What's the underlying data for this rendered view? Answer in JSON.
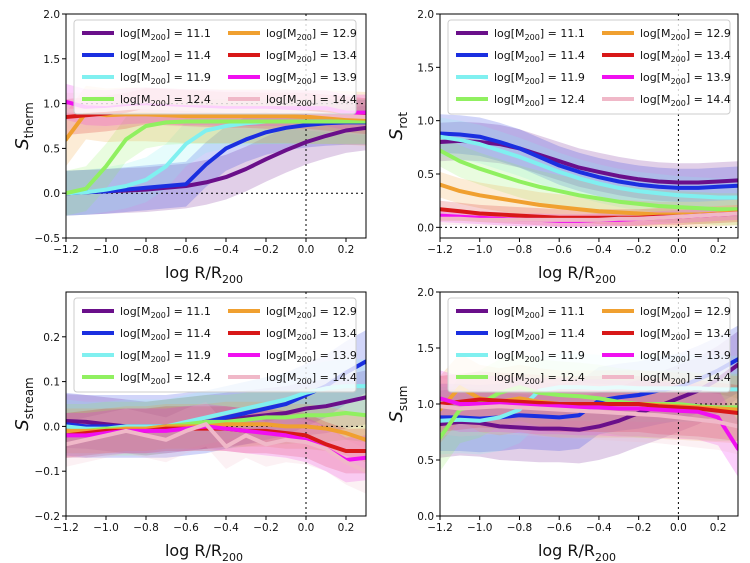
{
  "figure": {
    "xlabel_main": "log R/R",
    "xlabel_sub": "200"
  },
  "legend": [
    {
      "label_pre": "log[M",
      "label_sub": "200",
      "label_post": "] = 11.1",
      "color": "#6a0f8a"
    },
    {
      "label_pre": "log[M",
      "label_sub": "200",
      "label_post": "] = 12.9",
      "color": "#f0a030"
    },
    {
      "label_pre": "log[M",
      "label_sub": "200",
      "label_post": "] = 11.4",
      "color": "#1a2fe0"
    },
    {
      "label_pre": "log[M",
      "label_sub": "200",
      "label_post": "] = 13.4",
      "color": "#d81818"
    },
    {
      "label_pre": "log[M",
      "label_sub": "200",
      "label_post": "] = 11.9",
      "color": "#80f0f0"
    },
    {
      "label_pre": "log[M",
      "label_sub": "200",
      "label_post": "] = 13.9",
      "color": "#f010f0"
    },
    {
      "label_pre": "log[M",
      "label_sub": "200",
      "label_post": "] = 12.4",
      "color": "#90f060"
    },
    {
      "label_pre": "log[M",
      "label_sub": "200",
      "label_post": "] = 14.4",
      "color": "#f0b8c8"
    }
  ],
  "chart_data": [
    {
      "type": "line",
      "ylabel_main": "S",
      "ylabel_sub": "therm",
      "xlim": [
        -1.2,
        0.3
      ],
      "ylim": [
        -0.5,
        2.0
      ],
      "xticks": [
        -1.2,
        -1.0,
        -0.8,
        -0.6,
        -0.4,
        -0.2,
        0.0,
        0.2
      ],
      "xtick_labels": [
        "−1.2",
        "−1.0",
        "−0.8",
        "−0.6",
        "−0.4",
        "−0.2",
        "0.0",
        "0.2"
      ],
      "yticks": [
        -0.5,
        0.0,
        0.5,
        1.0,
        1.5,
        2.0
      ],
      "ytick_labels": [
        "−0.5",
        "0.0",
        "0.5",
        "1.0",
        "1.5",
        "2.0"
      ],
      "hlines": [
        0.0,
        1.0
      ],
      "vline": 0.0,
      "x": [
        -1.2,
        -1.1,
        -1.0,
        -0.9,
        -0.8,
        -0.7,
        -0.6,
        -0.5,
        -0.4,
        -0.3,
        -0.2,
        -0.1,
        0.0,
        0.1,
        0.2,
        0.3
      ],
      "series": [
        {
          "name": "11.1",
          "values": [
            0.0,
            0.01,
            0.02,
            0.03,
            0.04,
            0.06,
            0.08,
            0.12,
            0.18,
            0.27,
            0.38,
            0.48,
            0.57,
            0.64,
            0.7,
            0.73
          ],
          "spread": 0.25
        },
        {
          "name": "11.4",
          "values": [
            0.0,
            0.01,
            0.02,
            0.04,
            0.06,
            0.08,
            0.1,
            0.32,
            0.5,
            0.6,
            0.68,
            0.73,
            0.76,
            0.78,
            0.79,
            0.79
          ],
          "spread": 0.25
        },
        {
          "name": "11.9",
          "values": [
            0.0,
            0.01,
            0.04,
            0.08,
            0.15,
            0.3,
            0.55,
            0.7,
            0.75,
            0.78,
            0.8,
            0.8,
            0.8,
            0.8,
            0.8,
            0.8
          ],
          "spread": 0.25
        },
        {
          "name": "12.4",
          "values": [
            0.0,
            0.05,
            0.3,
            0.6,
            0.75,
            0.79,
            0.8,
            0.8,
            0.8,
            0.8,
            0.8,
            0.8,
            0.8,
            0.8,
            0.8,
            0.8
          ],
          "spread": 0.25
        },
        {
          "name": "12.9",
          "values": [
            0.6,
            0.9,
            0.87,
            0.88,
            0.88,
            0.87,
            0.86,
            0.86,
            0.86,
            0.86,
            0.86,
            0.86,
            0.85,
            0.85,
            0.84,
            0.83
          ],
          "spread": 0.3
        },
        {
          "name": "13.4",
          "values": [
            0.85,
            0.87,
            0.89,
            0.92,
            0.97,
            0.96,
            0.95,
            0.94,
            0.93,
            0.93,
            0.92,
            0.92,
            0.92,
            0.9,
            0.88,
            0.86
          ],
          "spread": 0.2
        },
        {
          "name": "13.9",
          "values": [
            1.02,
            0.96,
            0.95,
            0.97,
            0.98,
            0.97,
            0.96,
            0.96,
            0.95,
            0.95,
            0.95,
            0.95,
            0.95,
            0.95,
            0.9,
            0.9
          ],
          "spread": 0.2
        },
        {
          "name": "14.4",
          "values": [
            0.92,
            0.92,
            0.93,
            0.95,
            0.96,
            0.95,
            0.94,
            0.93,
            0.92,
            0.92,
            0.92,
            0.91,
            0.9,
            0.88,
            0.86,
            0.85
          ],
          "spread": 0.2
        }
      ]
    },
    {
      "type": "line",
      "ylabel_main": "S",
      "ylabel_sub": "rot",
      "xlim": [
        -1.2,
        0.3
      ],
      "ylim": [
        -0.1,
        2.0
      ],
      "xticks": [
        -1.2,
        -1.0,
        -0.8,
        -0.6,
        -0.4,
        -0.2,
        0.0,
        0.2
      ],
      "xtick_labels": [
        "−1.2",
        "−1.0",
        "−0.8",
        "−0.6",
        "−0.4",
        "−0.2",
        "0.0",
        "0.2"
      ],
      "yticks": [
        0.0,
        0.5,
        1.0,
        1.5,
        2.0
      ],
      "ytick_labels": [
        "0.0",
        "0.5",
        "1.0",
        "1.5",
        "2.0"
      ],
      "hlines": [
        0.0
      ],
      "vline": 0.0,
      "x": [
        -1.2,
        -1.1,
        -1.0,
        -0.9,
        -0.8,
        -0.7,
        -0.6,
        -0.5,
        -0.4,
        -0.3,
        -0.2,
        -0.1,
        0.0,
        0.1,
        0.2,
        0.3
      ],
      "series": [
        {
          "name": "11.1",
          "values": [
            0.8,
            0.81,
            0.8,
            0.78,
            0.74,
            0.68,
            0.62,
            0.56,
            0.52,
            0.48,
            0.45,
            0.43,
            0.42,
            0.42,
            0.43,
            0.44
          ],
          "spread": 0.18
        },
        {
          "name": "11.4",
          "values": [
            0.88,
            0.87,
            0.85,
            0.8,
            0.74,
            0.66,
            0.58,
            0.52,
            0.47,
            0.43,
            0.4,
            0.38,
            0.37,
            0.37,
            0.38,
            0.39
          ],
          "spread": 0.18
        },
        {
          "name": "11.9",
          "values": [
            0.85,
            0.82,
            0.78,
            0.72,
            0.66,
            0.59,
            0.52,
            0.46,
            0.41,
            0.37,
            0.34,
            0.32,
            0.3,
            0.29,
            0.28,
            0.28
          ],
          "spread": 0.18
        },
        {
          "name": "12.4",
          "values": [
            0.72,
            0.62,
            0.55,
            0.49,
            0.43,
            0.38,
            0.34,
            0.3,
            0.27,
            0.24,
            0.22,
            0.2,
            0.19,
            0.18,
            0.17,
            0.17
          ],
          "spread": 0.15
        },
        {
          "name": "12.9",
          "values": [
            0.4,
            0.34,
            0.3,
            0.27,
            0.24,
            0.21,
            0.19,
            0.17,
            0.15,
            0.14,
            0.13,
            0.12,
            0.12,
            0.12,
            0.13,
            0.14
          ],
          "spread": 0.12
        },
        {
          "name": "13.4",
          "values": [
            0.17,
            0.15,
            0.13,
            0.12,
            0.11,
            0.1,
            0.09,
            0.09,
            0.09,
            0.09,
            0.09,
            0.1,
            0.1,
            0.11,
            0.12,
            0.13
          ],
          "spread": 0.08
        },
        {
          "name": "13.9",
          "values": [
            0.11,
            0.1,
            0.09,
            0.08,
            0.07,
            0.07,
            0.06,
            0.06,
            0.07,
            0.07,
            0.08,
            0.09,
            0.1,
            0.11,
            0.12,
            0.13
          ],
          "spread": 0.06
        },
        {
          "name": "14.4",
          "values": [
            0.08,
            0.08,
            0.07,
            0.07,
            0.07,
            0.07,
            0.07,
            0.07,
            0.07,
            0.08,
            0.08,
            0.09,
            0.1,
            0.11,
            0.12,
            0.13
          ],
          "spread": 0.06
        }
      ]
    },
    {
      "type": "line",
      "ylabel_main": "S",
      "ylabel_sub": "stream",
      "xlim": [
        -1.2,
        0.3
      ],
      "ylim": [
        -0.2,
        0.3
      ],
      "xticks": [
        -1.2,
        -1.0,
        -0.8,
        -0.6,
        -0.4,
        -0.2,
        0.0,
        0.2
      ],
      "xtick_labels": [
        "−1.2",
        "−1.0",
        "−0.8",
        "−0.6",
        "−0.4",
        "−0.2",
        "0.0",
        "0.2"
      ],
      "yticks": [
        -0.2,
        -0.1,
        0.0,
        0.1,
        0.2
      ],
      "ytick_labels": [
        "−0.2",
        "−0.1",
        "0.0",
        "0.1",
        "0.2"
      ],
      "hlines": [
        0.0
      ],
      "vline": 0.0,
      "x": [
        -1.2,
        -1.1,
        -1.0,
        -0.9,
        -0.8,
        -0.7,
        -0.6,
        -0.5,
        -0.4,
        -0.3,
        -0.2,
        -0.1,
        0.0,
        0.1,
        0.2,
        0.3
      ],
      "series": [
        {
          "name": "11.1",
          "values": [
            0.012,
            0.01,
            0.005,
            0.0,
            -0.005,
            0.0,
            0.005,
            0.01,
            0.015,
            0.02,
            0.025,
            0.03,
            0.04,
            0.045,
            0.055,
            0.065
          ],
          "spread": 0.06
        },
        {
          "name": "11.4",
          "values": [
            0.005,
            0.0,
            0.0,
            0.0,
            0.0,
            0.0,
            0.005,
            0.01,
            0.02,
            0.03,
            0.04,
            0.05,
            0.07,
            0.09,
            0.12,
            0.145
          ],
          "spread": 0.07
        },
        {
          "name": "11.9",
          "values": [
            0.0,
            -0.005,
            -0.005,
            0.0,
            0.0,
            0.0,
            0.01,
            0.02,
            0.03,
            0.04,
            0.05,
            0.06,
            0.075,
            0.085,
            0.09,
            0.09
          ],
          "spread": 0.06
        },
        {
          "name": "12.4",
          "values": [
            -0.01,
            -0.01,
            -0.005,
            -0.005,
            -0.005,
            0.0,
            0.005,
            0.01,
            0.01,
            0.015,
            0.02,
            0.02,
            0.025,
            0.025,
            0.03,
            0.025
          ],
          "spread": 0.06
        },
        {
          "name": "12.9",
          "values": [
            -0.01,
            -0.01,
            -0.01,
            -0.005,
            -0.005,
            0.0,
            0.0,
            0.0,
            0.005,
            0.005,
            0.005,
            0.0,
            0.0,
            -0.005,
            -0.015,
            -0.03
          ],
          "spread": 0.05
        },
        {
          "name": "13.4",
          "values": [
            -0.02,
            -0.015,
            -0.01,
            -0.01,
            -0.01,
            -0.005,
            -0.005,
            -0.005,
            -0.005,
            -0.01,
            -0.01,
            -0.015,
            -0.02,
            -0.04,
            -0.055,
            -0.055
          ],
          "spread": 0.05
        },
        {
          "name": "13.9",
          "values": [
            -0.02,
            -0.02,
            -0.015,
            -0.01,
            -0.01,
            -0.01,
            -0.005,
            0.0,
            -0.005,
            -0.01,
            -0.015,
            -0.02,
            -0.03,
            -0.05,
            -0.075,
            -0.07
          ],
          "spread": 0.05
        },
        {
          "name": "14.4",
          "values": [
            -0.04,
            -0.03,
            -0.02,
            -0.01,
            -0.02,
            -0.03,
            -0.01,
            0.005,
            -0.045,
            -0.02,
            -0.04,
            -0.03,
            -0.035,
            -0.05,
            -0.08,
            -0.1
          ],
          "spread": 0.05
        }
      ]
    },
    {
      "type": "line",
      "ylabel_main": "S",
      "ylabel_sub": "sum",
      "xlim": [
        -1.2,
        0.3
      ],
      "ylim": [
        0.0,
        2.0
      ],
      "xticks": [
        -1.2,
        -1.0,
        -0.8,
        -0.6,
        -0.4,
        -0.2,
        0.0,
        0.2
      ],
      "xtick_labels": [
        "−1.2",
        "−1.0",
        "−0.8",
        "−0.6",
        "−0.4",
        "−0.2",
        "0.0",
        "0.2"
      ],
      "yticks": [
        0.0,
        0.5,
        1.0,
        1.5,
        2.0
      ],
      "ytick_labels": [
        "0.0",
        "0.5",
        "1.0",
        "1.5",
        "2.0"
      ],
      "hlines": [
        1.0
      ],
      "vline": 0.0,
      "x": [
        -1.2,
        -1.1,
        -1.0,
        -0.9,
        -0.8,
        -0.7,
        -0.6,
        -0.5,
        -0.4,
        -0.3,
        -0.2,
        -0.1,
        0.0,
        0.1,
        0.2,
        0.3
      ],
      "series": [
        {
          "name": "11.1",
          "values": [
            0.82,
            0.84,
            0.83,
            0.8,
            0.79,
            0.78,
            0.78,
            0.77,
            0.8,
            0.85,
            0.92,
            0.98,
            1.05,
            1.12,
            1.22,
            1.35
          ],
          "spread": 0.3
        },
        {
          "name": "11.4",
          "values": [
            0.88,
            0.88,
            0.87,
            0.88,
            0.9,
            0.89,
            0.88,
            0.9,
            1.03,
            1.06,
            1.08,
            1.12,
            1.15,
            1.22,
            1.3,
            1.4
          ],
          "spread": 0.3
        },
        {
          "name": "11.9",
          "values": [
            0.85,
            0.86,
            0.85,
            0.88,
            0.95,
            1.12,
            1.15,
            1.15,
            1.14,
            1.15,
            1.14,
            1.14,
            1.14,
            1.14,
            1.13,
            1.13
          ],
          "spread": 0.3
        },
        {
          "name": "12.4",
          "values": [
            0.7,
            0.95,
            1.0,
            1.1,
            1.15,
            1.1,
            1.08,
            1.07,
            1.05,
            1.02,
            1.0,
            1.0,
            1.0,
            0.98,
            0.97,
            0.97
          ],
          "spread": 0.3
        },
        {
          "name": "12.9",
          "values": [
            0.95,
            1.15,
            1.05,
            1.02,
            1.05,
            1.02,
            1.0,
            1.0,
            1.0,
            1.0,
            1.0,
            0.99,
            0.98,
            0.97,
            0.96,
            0.95
          ],
          "spread": 0.3
        },
        {
          "name": "13.4",
          "values": [
            1.0,
            1.02,
            1.04,
            1.03,
            1.02,
            1.01,
            1.0,
            1.0,
            1.0,
            1.0,
            1.0,
            0.98,
            0.97,
            0.96,
            0.94,
            0.92
          ],
          "spread": 0.25
        },
        {
          "name": "13.9",
          "values": [
            1.05,
            1.0,
            1.0,
            1.0,
            0.99,
            0.98,
            0.98,
            0.97,
            0.97,
            0.96,
            0.96,
            0.95,
            0.94,
            0.93,
            0.88,
            0.6
          ],
          "spread": 0.25
        },
        {
          "name": "14.4",
          "values": [
            0.98,
            0.96,
            0.97,
            0.98,
            0.97,
            0.96,
            0.95,
            0.94,
            0.93,
            0.92,
            0.91,
            0.9,
            0.88,
            0.86,
            0.84,
            0.8
          ],
          "spread": 0.25
        }
      ]
    }
  ]
}
